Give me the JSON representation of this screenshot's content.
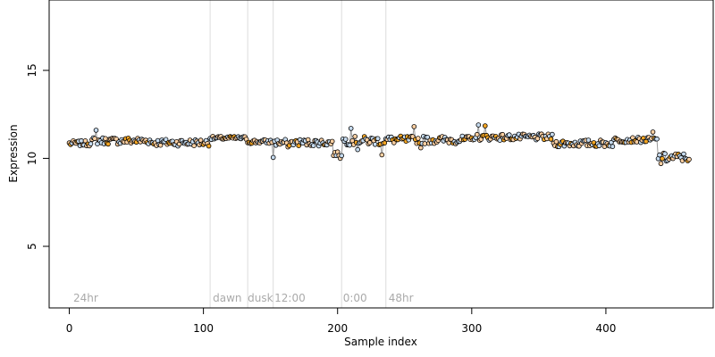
{
  "chart_data": {
    "type": "scatter",
    "title": "",
    "xlabel": "Sample index",
    "ylabel": "Expression",
    "xlim": [
      -15,
      480
    ],
    "ylim": [
      1.5,
      19.0
    ],
    "x_ticks": [
      0,
      100,
      200,
      300,
      400
    ],
    "y_ticks": [
      5,
      10,
      15
    ],
    "grid": false,
    "legend": "none",
    "region_boundaries": [
      105,
      133,
      152,
      203,
      236
    ],
    "region_labels": [
      {
        "x": 3,
        "text": "24hr"
      },
      {
        "x": 107,
        "text": "dawn"
      },
      {
        "x": 133,
        "text": "dusk"
      },
      {
        "x": 153,
        "text": "12:00"
      },
      {
        "x": 204,
        "text": "0:00"
      },
      {
        "x": 238,
        "text": "48hr"
      }
    ],
    "segments": [
      {
        "x0": 0,
        "x1": 15,
        "y": 10.85,
        "jitter": 0.15
      },
      {
        "x0": 16,
        "x1": 60,
        "y": 11.0,
        "jitter": 0.2
      },
      {
        "x0": 61,
        "x1": 104,
        "y": 10.9,
        "jitter": 0.2
      },
      {
        "x0": 105,
        "x1": 132,
        "y": 11.15,
        "jitter": 0.1
      },
      {
        "x0": 133,
        "x1": 151,
        "y": 10.95,
        "jitter": 0.12
      },
      {
        "x0": 152,
        "x1": 196,
        "y": 10.9,
        "jitter": 0.2
      },
      {
        "x0": 197,
        "x1": 203,
        "y": 10.25,
        "jitter": 0.12
      },
      {
        "x0": 204,
        "x1": 235,
        "y": 11.0,
        "jitter": 0.25
      },
      {
        "x0": 236,
        "x1": 300,
        "y": 11.05,
        "jitter": 0.22
      },
      {
        "x0": 301,
        "x1": 360,
        "y": 11.2,
        "jitter": 0.18
      },
      {
        "x0": 361,
        "x1": 405,
        "y": 10.85,
        "jitter": 0.2
      },
      {
        "x0": 406,
        "x1": 438,
        "y": 11.05,
        "jitter": 0.15
      },
      {
        "x0": 439,
        "x1": 462,
        "y": 10.05,
        "jitter": 0.25
      }
    ],
    "outliers": [
      {
        "x": 20,
        "y": 11.6
      },
      {
        "x": 152,
        "y": 10.05
      },
      {
        "x": 163,
        "y": 10.65
      },
      {
        "x": 202,
        "y": 10.0
      },
      {
        "x": 210,
        "y": 11.7
      },
      {
        "x": 215,
        "y": 10.5
      },
      {
        "x": 233,
        "y": 10.2
      },
      {
        "x": 257,
        "y": 11.8
      },
      {
        "x": 262,
        "y": 10.6
      },
      {
        "x": 305,
        "y": 11.9
      },
      {
        "x": 310,
        "y": 11.85
      },
      {
        "x": 435,
        "y": 11.5
      },
      {
        "x": 441,
        "y": 9.7
      },
      {
        "x": 445,
        "y": 9.85
      }
    ],
    "colors": {
      "point_fill_light": "#c6dbef",
      "point_fill_warm": "#fdd0a2",
      "point_fill_orange": "#f5a623",
      "point_stroke": "#000000",
      "line": "#9a9a9a",
      "region_line": "#dcdcdc",
      "region_text": "#aaaaaa",
      "axis": "#000000"
    }
  }
}
